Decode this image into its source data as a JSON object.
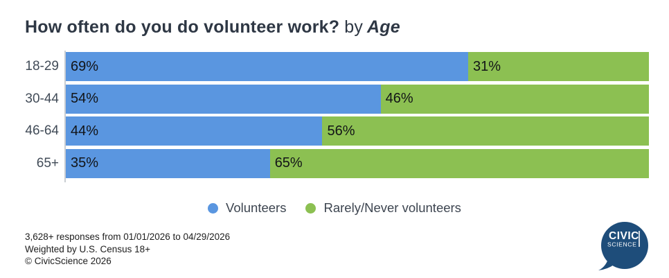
{
  "title": {
    "question": "How often do you do volunteer work?",
    "connector": "by",
    "segment": "Age"
  },
  "chart_data": {
    "type": "bar",
    "stacked": true,
    "orientation": "horizontal",
    "title": "How often do you do volunteer work? by Age",
    "categories": [
      "18-29",
      "30-44",
      "46-64",
      "65+"
    ],
    "series": [
      {
        "name": "Volunteers",
        "color": "#5a96e0",
        "values": [
          69,
          54,
          44,
          35
        ]
      },
      {
        "name": "Rarely/Never volunteers",
        "color": "#8cc052",
        "values": [
          31,
          46,
          56,
          65
        ]
      }
    ],
    "value_suffix": "%",
    "xlim": [
      0,
      100
    ],
    "grid": false,
    "legend_position": "bottom-center"
  },
  "footer": {
    "responses": "3,628+ responses from 01/01/2026 to 04/29/2026",
    "weighting": "Weighted by U.S. Census 18+",
    "copyright": "© CivicScience 2026"
  },
  "logo": {
    "top": "CIVIC",
    "bottom": "SCIENCE",
    "bg_color": "#1e4d7a",
    "text_color": "#ffffff"
  },
  "style": {
    "background": "#ffffff",
    "title_color": "#2e3744",
    "category_color": "#414b57",
    "value_label_color": "#121417",
    "legend_text_color": "#3d4550",
    "footer_color": "#1d1d1d",
    "axis_color": "#c9cdd2"
  }
}
